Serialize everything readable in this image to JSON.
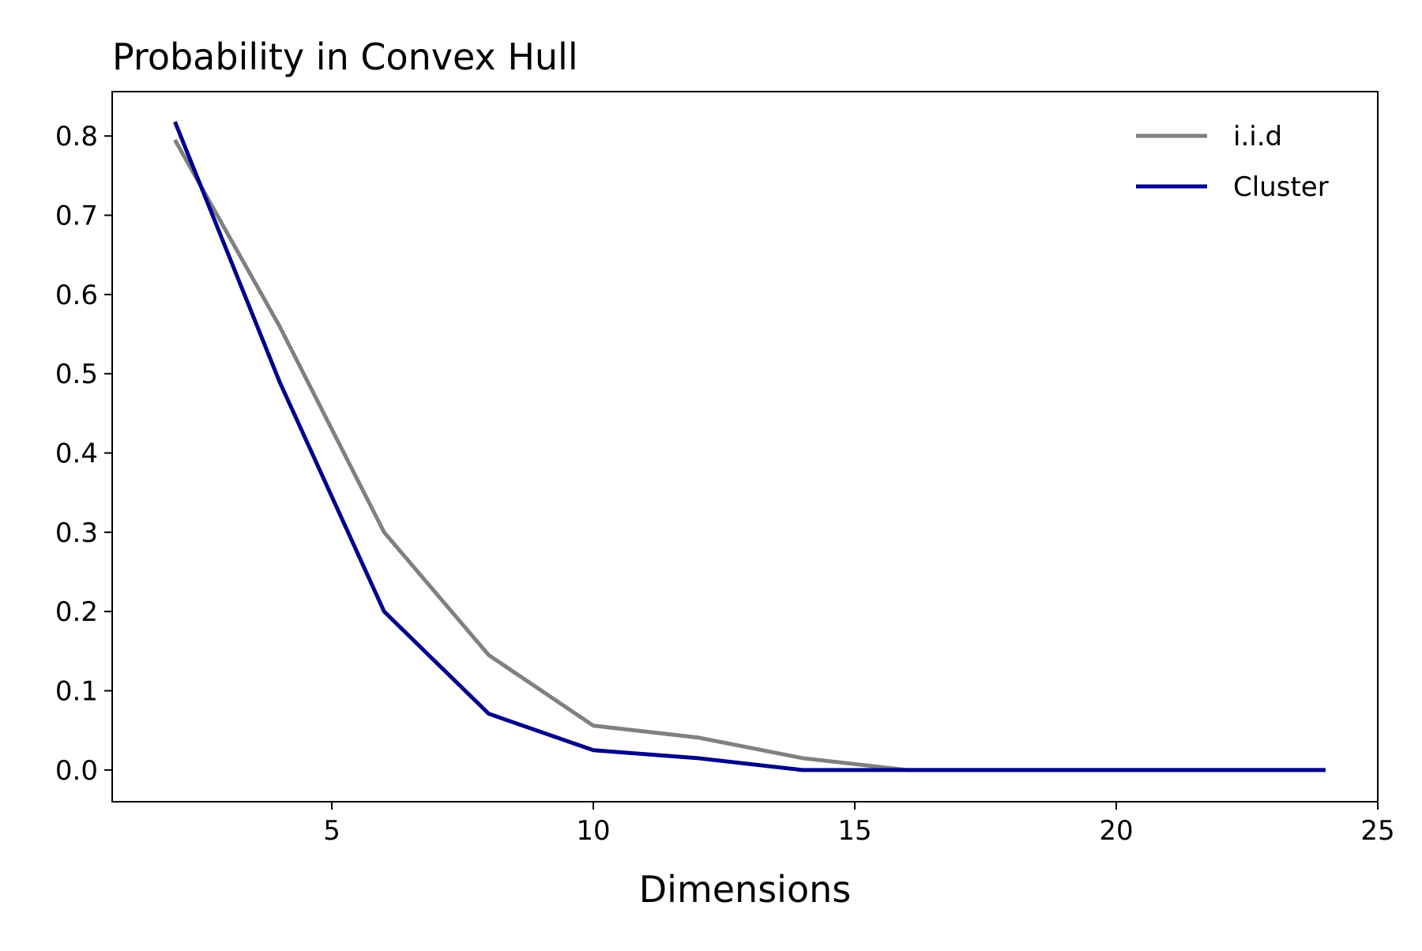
{
  "chart_data": {
    "type": "line",
    "title": "Probability in Convex Hull",
    "xlabel": "Dimensions",
    "ylabel": "",
    "x": [
      2,
      4,
      6,
      8,
      10,
      12,
      14,
      16,
      18,
      20,
      22,
      24
    ],
    "series": [
      {
        "name": "i.i.d",
        "color": "#808080",
        "values": [
          0.795,
          0.56,
          0.3,
          0.145,
          0.056,
          0.041,
          0.015,
          0.0,
          0.0,
          0.0,
          0.0,
          0.0
        ]
      },
      {
        "name": "Cluster",
        "color": "#00008b",
        "values": [
          0.818,
          0.49,
          0.2,
          0.071,
          0.025,
          0.015,
          0.0,
          0.0,
          0.0,
          0.0,
          0.0,
          0.0
        ]
      }
    ],
    "xlim": [
      0.8,
      25.0
    ],
    "ylim": [
      -0.04,
      0.856
    ],
    "xticks": [
      5,
      10,
      15,
      20,
      25
    ],
    "yticks": [
      0.0,
      0.1,
      0.2,
      0.3,
      0.4,
      0.5,
      0.6,
      0.7,
      0.8
    ],
    "xtick_labels": [
      "5",
      "10",
      "15",
      "20",
      "25"
    ],
    "ytick_labels": [
      "0.0",
      "0.1",
      "0.2",
      "0.3",
      "0.4",
      "0.5",
      "0.6",
      "0.7",
      "0.8"
    ],
    "grid": false,
    "legend_position": "top-right",
    "legend_frame": false
  }
}
